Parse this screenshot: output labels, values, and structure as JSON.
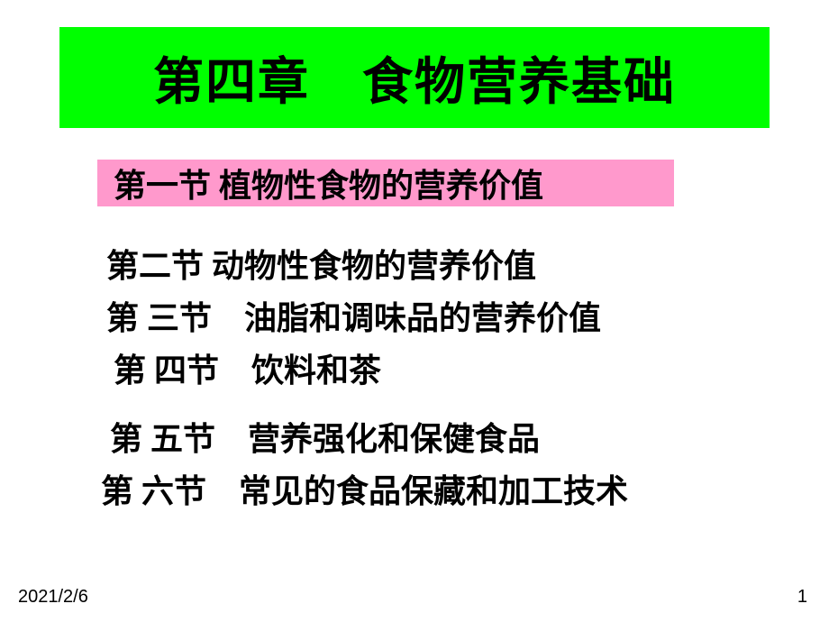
{
  "title": {
    "text": "第四章　食物营养基础",
    "bg_color": "#00ff00",
    "text_color": "#000000",
    "fontsize": 56
  },
  "subtitle": {
    "text": "第一节 植物性食物的营养价值",
    "bg_color": "#ff99cc",
    "text_color": "#000000",
    "fontsize": 36
  },
  "sections": {
    "s2": "第二节 动物性食物的营养价值",
    "s3": "第 三节　油脂和调味品的营养价值",
    "s4": "第 四节　饮料和茶",
    "s5": "第 五节　营养强化和保健食品",
    "s6": "第 六节　常见的食品保藏和加工技术"
  },
  "footer": {
    "date": "2021/2/6",
    "page": "1"
  },
  "colors": {
    "page_bg": "#ffffff",
    "body_text": "#000000"
  }
}
